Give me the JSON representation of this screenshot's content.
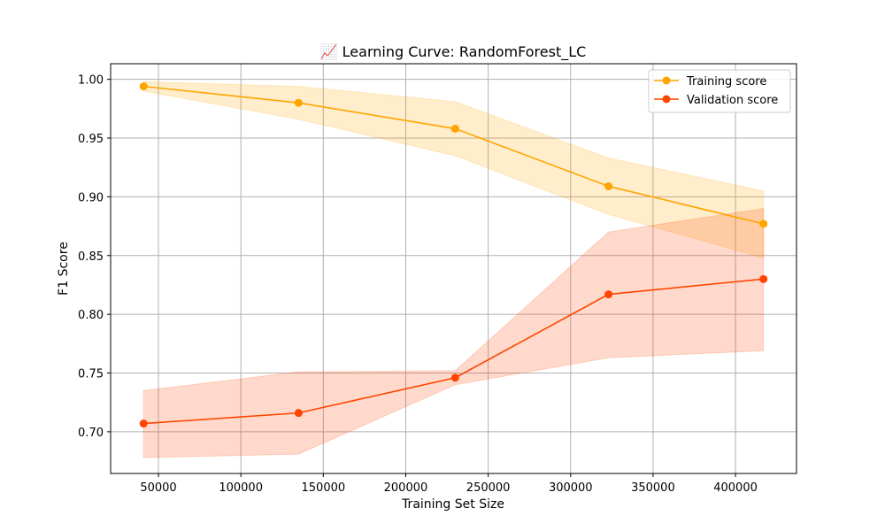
{
  "chart_data": {
    "type": "line",
    "title": "📈 Learning Curve: RandomForest_LC",
    "title_icon": "chart-increasing-emoji",
    "xlabel": "Training Set Size",
    "ylabel": "F1 Score",
    "xlim": [
      21000,
      437000
    ],
    "ylim": [
      0.6645,
      1.0133
    ],
    "x_ticks": [
      50000,
      100000,
      150000,
      200000,
      250000,
      300000,
      350000,
      400000
    ],
    "y_ticks": [
      0.7,
      0.75,
      0.8,
      0.85,
      0.9,
      0.95,
      1.0
    ],
    "x_tick_labels": [
      "50000",
      "100000",
      "150000",
      "200000",
      "250000",
      "300000",
      "350000",
      "400000"
    ],
    "y_tick_labels": [
      "0.70",
      "0.75",
      "0.80",
      "0.85",
      "0.90",
      "0.95",
      "1.00"
    ],
    "grid": true,
    "legend_position": "top-right",
    "x": [
      41000,
      135000,
      230000,
      323000,
      417000
    ],
    "series": [
      {
        "name": "Training score",
        "color": "#FFA500",
        "values": [
          0.994,
          0.98,
          0.958,
          0.909,
          0.877
        ],
        "band_upper": [
          0.998,
          0.994,
          0.981,
          0.933,
          0.905
        ],
        "band_lower": [
          0.99,
          0.966,
          0.935,
          0.885,
          0.848
        ]
      },
      {
        "name": "Validation score",
        "color": "#FF4500",
        "values": [
          0.707,
          0.716,
          0.746,
          0.817,
          0.83
        ],
        "band_upper": [
          0.735,
          0.751,
          0.752,
          0.87,
          0.89
        ],
        "band_lower": [
          0.678,
          0.681,
          0.74,
          0.763,
          0.769
        ]
      }
    ]
  }
}
